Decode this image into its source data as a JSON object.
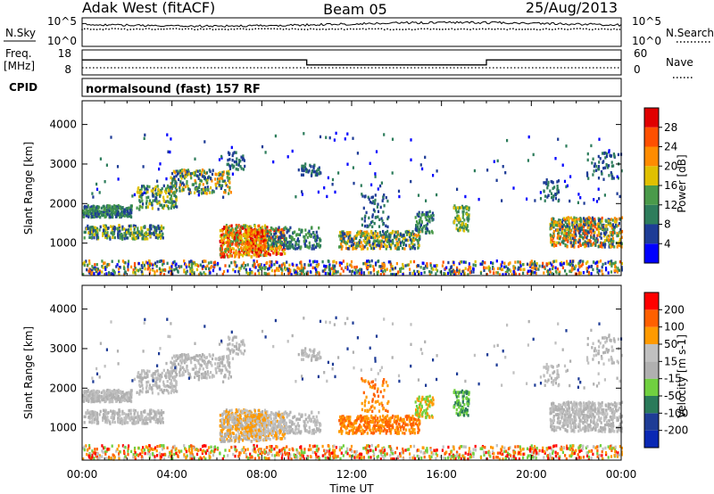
{
  "header": {
    "radar": "Adak West (fitACF)",
    "beam": "Beam 05",
    "date": "25/Aug/2013"
  },
  "noise_panel": {
    "left_label": "N.Sky",
    "right_label": "N.Search",
    "left_ticks": [
      "10^5",
      "10^0"
    ],
    "right_ticks": [
      "10^5",
      "10^0"
    ]
  },
  "freq_panel": {
    "left_label_1": "Freq.",
    "left_label_2": "[MHz]",
    "right_label": "Nave",
    "left_ticks": [
      "18",
      "8"
    ],
    "right_ticks": [
      "60",
      "0"
    ]
  },
  "cpid_panel": {
    "label": "CPID",
    "program": "normalsound (fast) 157 RF"
  },
  "colors": {
    "power": [
      "#0000ff",
      "#1e3c96",
      "#2e7d5c",
      "#4a9a4a",
      "#e0c000",
      "#ff8c00",
      "#ff5000",
      "#e00000"
    ],
    "velocity": [
      "#ff0000",
      "#ff6000",
      "#ff9a00",
      "#c0c0c0",
      "#b0b0b0",
      "#70d040",
      "#2a7a5a",
      "#1e3c96",
      "#0a28b4"
    ]
  },
  "chart_data": [
    {
      "type": "heatmap",
      "parameter": "power",
      "ylabel": "Slant Range [km]",
      "colorbar_label": "Power [dB]",
      "colorbar_ticks": [
        "28",
        "24",
        "20",
        "16",
        "12",
        "8",
        "4"
      ],
      "ylim": [
        180,
        4600
      ],
      "yticks": [
        1000,
        2000,
        3000,
        4000
      ],
      "xlim": [
        0,
        24
      ],
      "xtick_labels": [
        "00:00",
        "04:00",
        "08:00",
        "12:00",
        "16:00",
        "20:00",
        "00:00"
      ]
    },
    {
      "type": "heatmap",
      "parameter": "velocity",
      "ylabel": "Slant Range [km]",
      "colorbar_label": "Velocity [m s-1]",
      "colorbar_ticks": [
        "200",
        "100",
        "50",
        "15",
        "-15",
        "-50",
        "-100",
        "-200"
      ],
      "ylim": [
        180,
        4600
      ],
      "yticks": [
        1000,
        2000,
        3000,
        4000
      ],
      "xlim": [
        0,
        24
      ],
      "xtick_labels": [
        "00:00",
        "04:00",
        "08:00",
        "12:00",
        "16:00",
        "20:00",
        "00:00"
      ],
      "xlabel": "Time UT"
    },
    {
      "type": "line",
      "parameter": "frequency",
      "ylim": [
        8,
        18
      ],
      "x": [
        0,
        10,
        10,
        18,
        18,
        24
      ],
      "values": [
        14,
        14,
        12,
        12,
        14,
        14
      ]
    }
  ]
}
